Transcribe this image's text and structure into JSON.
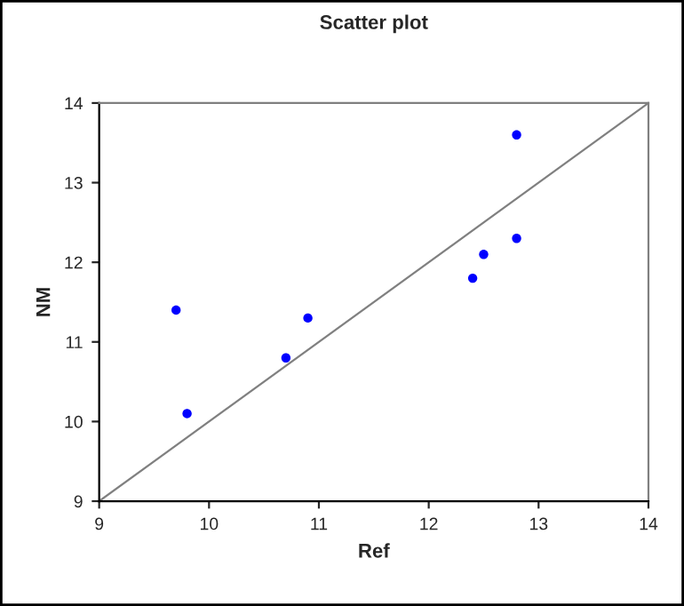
{
  "chart_data": {
    "type": "scatter",
    "title": "Scatter plot",
    "xlabel": "Ref",
    "ylabel": "NM",
    "series": [
      {
        "color": "#0000ff",
        "marker": "circle",
        "x": [
          9.7,
          9.8,
          10.7,
          10.9,
          12.4,
          12.5,
          12.8,
          12.8
        ],
        "values": [
          11.4,
          10.1,
          10.8,
          11.3,
          11.8,
          12.1,
          13.6,
          12.3
        ]
      },
      {
        "type": "line",
        "color": "#808080",
        "marker": "none",
        "x": [
          9,
          14
        ],
        "values": [
          9,
          14
        ]
      }
    ],
    "xlim": [
      9,
      14
    ],
    "ylim": [
      9,
      14
    ],
    "xticks": [
      9,
      10,
      11,
      12,
      13,
      14
    ],
    "yticks": [
      9,
      10,
      11,
      12,
      13,
      14
    ],
    "grid": false,
    "legend": false
  }
}
